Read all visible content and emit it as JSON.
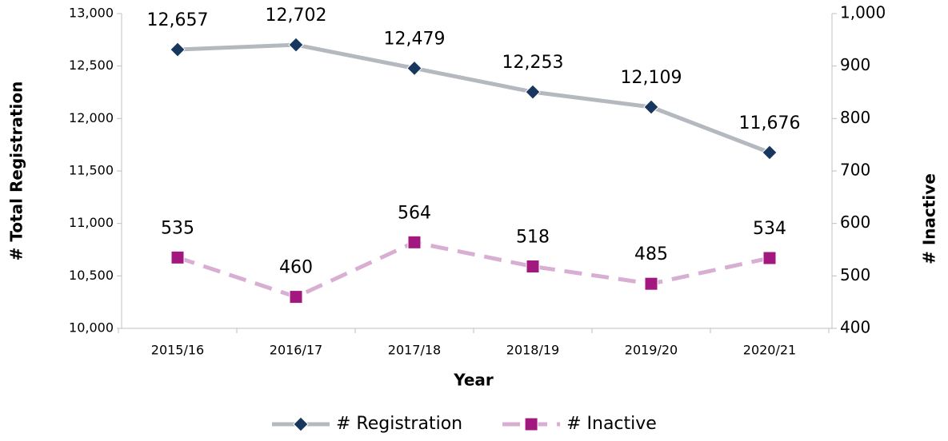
{
  "chart_data": {
    "type": "line",
    "categories": [
      "2015/16",
      "2016/17",
      "2017/18",
      "2018/19",
      "2019/20",
      "2020/21"
    ],
    "x_label": "Year",
    "y_label": "# Total Registration",
    "y2_label": "# Inactive",
    "ylim": [
      10000,
      13000
    ],
    "yticks": [
      {
        "value": 10000,
        "label": "10,000"
      },
      {
        "value": 10500,
        "label": "10,500"
      },
      {
        "value": 11000,
        "label": "11,000"
      },
      {
        "value": 11500,
        "label": "11,500"
      },
      {
        "value": 12000,
        "label": "12,000"
      },
      {
        "value": 12500,
        "label": "12,500"
      },
      {
        "value": 13000,
        "label": "13,000"
      }
    ],
    "y2lim": [
      400,
      1000
    ],
    "y2ticks": [
      400,
      500,
      600,
      700,
      800,
      900,
      {
        "value": 1000,
        "label": "1,000"
      }
    ],
    "legend": "bottom",
    "series": [
      {
        "name": "# Registration",
        "color": "#b4b9bf",
        "marker_color": "#17375e",
        "marker": "diamond",
        "line_style": "solid",
        "values": [
          12657,
          12702,
          12479,
          12253,
          12109,
          11676
        ],
        "value_labels": [
          "12,657",
          "12,702",
          "12,479",
          "12,253",
          "12,109",
          "11,676"
        ]
      },
      {
        "name": "# Inactive",
        "color": "#d8afd3",
        "marker_color": "#a3187f",
        "marker": "square",
        "line_style": "dashed",
        "axis": "y2",
        "values": [
          535,
          460,
          564,
          518,
          485,
          534
        ]
      }
    ]
  }
}
